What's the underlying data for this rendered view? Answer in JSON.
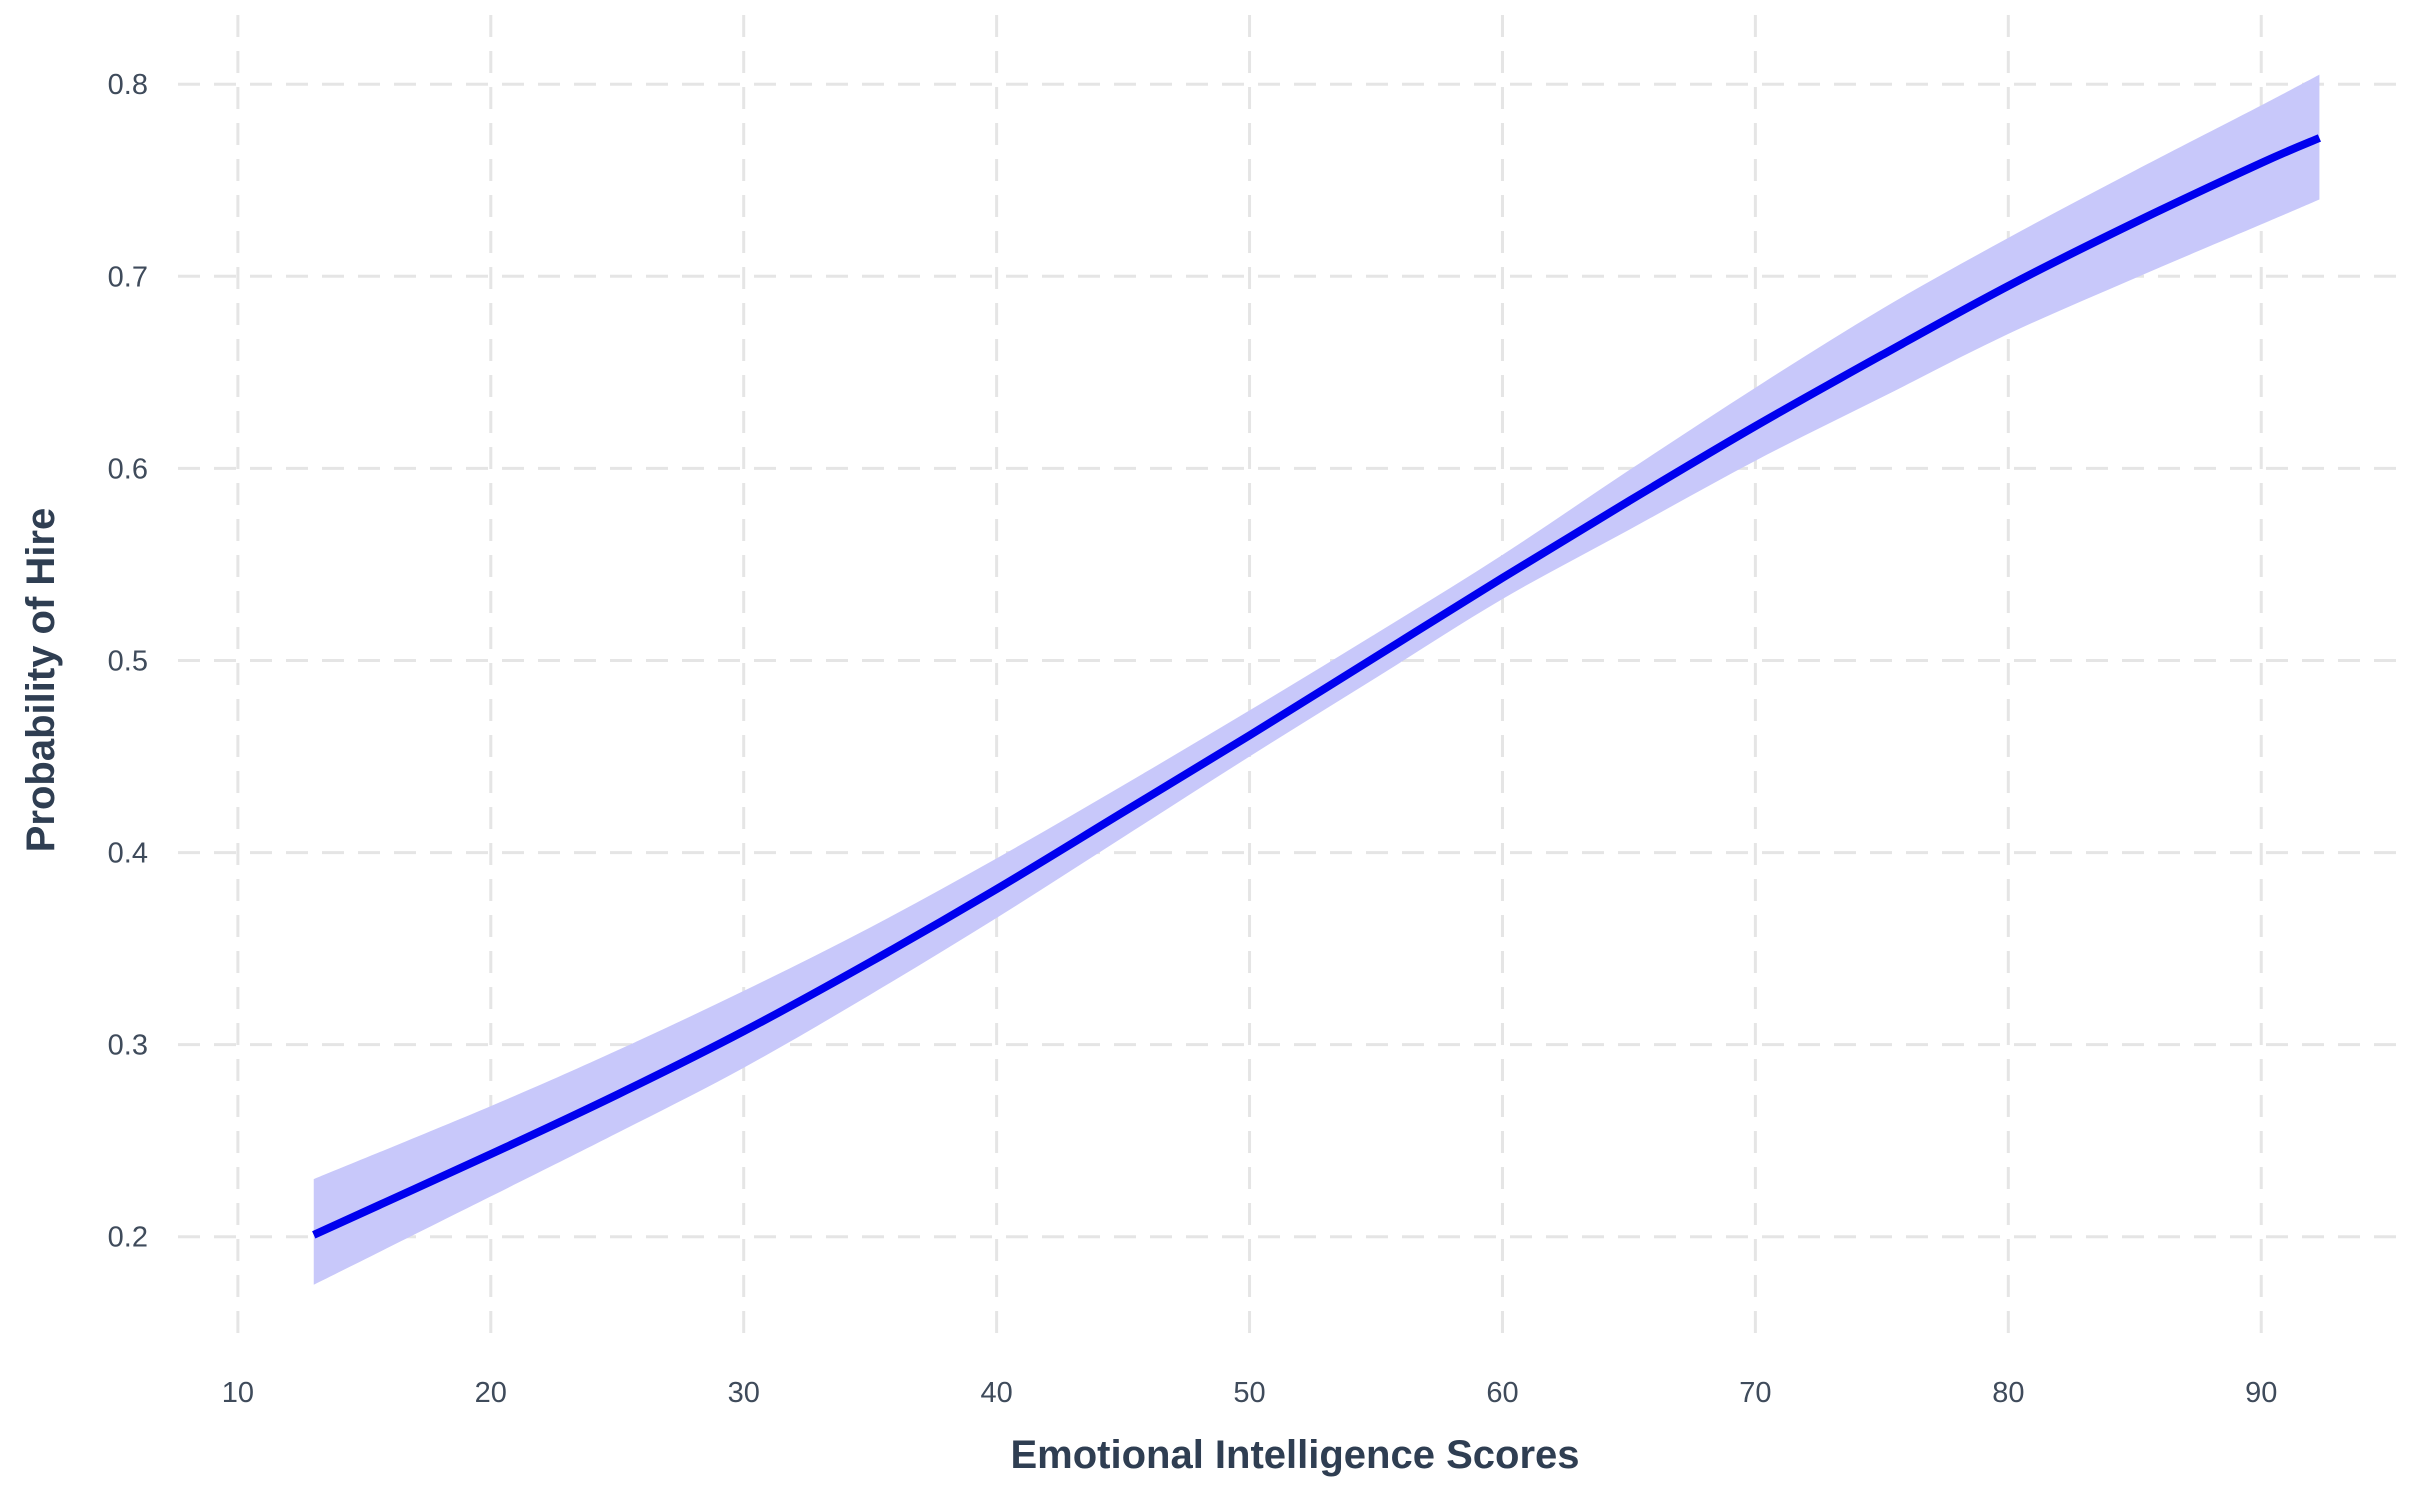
{
  "chart_data": {
    "type": "line",
    "title": "",
    "xlabel": "Emotional Intelligence Scores",
    "ylabel": "Probability of Hire",
    "xlim": [
      7,
      96
    ],
    "ylim": [
      0.14,
      0.81
    ],
    "xticks": [
      10,
      20,
      30,
      40,
      50,
      60,
      70,
      80,
      90
    ],
    "yticks": [
      0.2,
      0.3,
      0.4,
      0.5,
      0.6,
      0.7,
      0.8
    ],
    "xtick_labels": [
      "10",
      "20",
      "30",
      "40",
      "50",
      "60",
      "70",
      "80",
      "90"
    ],
    "ytick_labels": [
      "0.2",
      "0.3",
      "0.4",
      "0.5",
      "0.6",
      "0.7",
      "0.8"
    ],
    "grid": true,
    "legend": "none",
    "series": [
      {
        "color": "#0000ee",
        "x": [
          13,
          20,
          25,
          30,
          35,
          40,
          45,
          50,
          55,
          60,
          65,
          70,
          75,
          80,
          85,
          90,
          92.3
        ],
        "y": [
          0.201,
          0.243,
          0.274,
          0.307,
          0.343,
          0.381,
          0.421,
          0.461,
          0.502,
          0.543,
          0.583,
          0.622,
          0.659,
          0.695,
          0.728,
          0.759,
          0.772
        ],
        "band_lower": [
          0.175,
          0.221,
          0.254,
          0.288,
          0.326,
          0.366,
          0.408,
          0.45,
          0.491,
          0.532,
          0.568,
          0.604,
          0.637,
          0.67,
          0.699,
          0.727,
          0.74
        ],
        "band_upper": [
          0.23,
          0.268,
          0.297,
          0.328,
          0.361,
          0.397,
          0.435,
          0.474,
          0.514,
          0.555,
          0.599,
          0.642,
          0.683,
          0.72,
          0.755,
          0.789,
          0.805
        ],
        "band_color": "#c8c8fa"
      }
    ]
  }
}
